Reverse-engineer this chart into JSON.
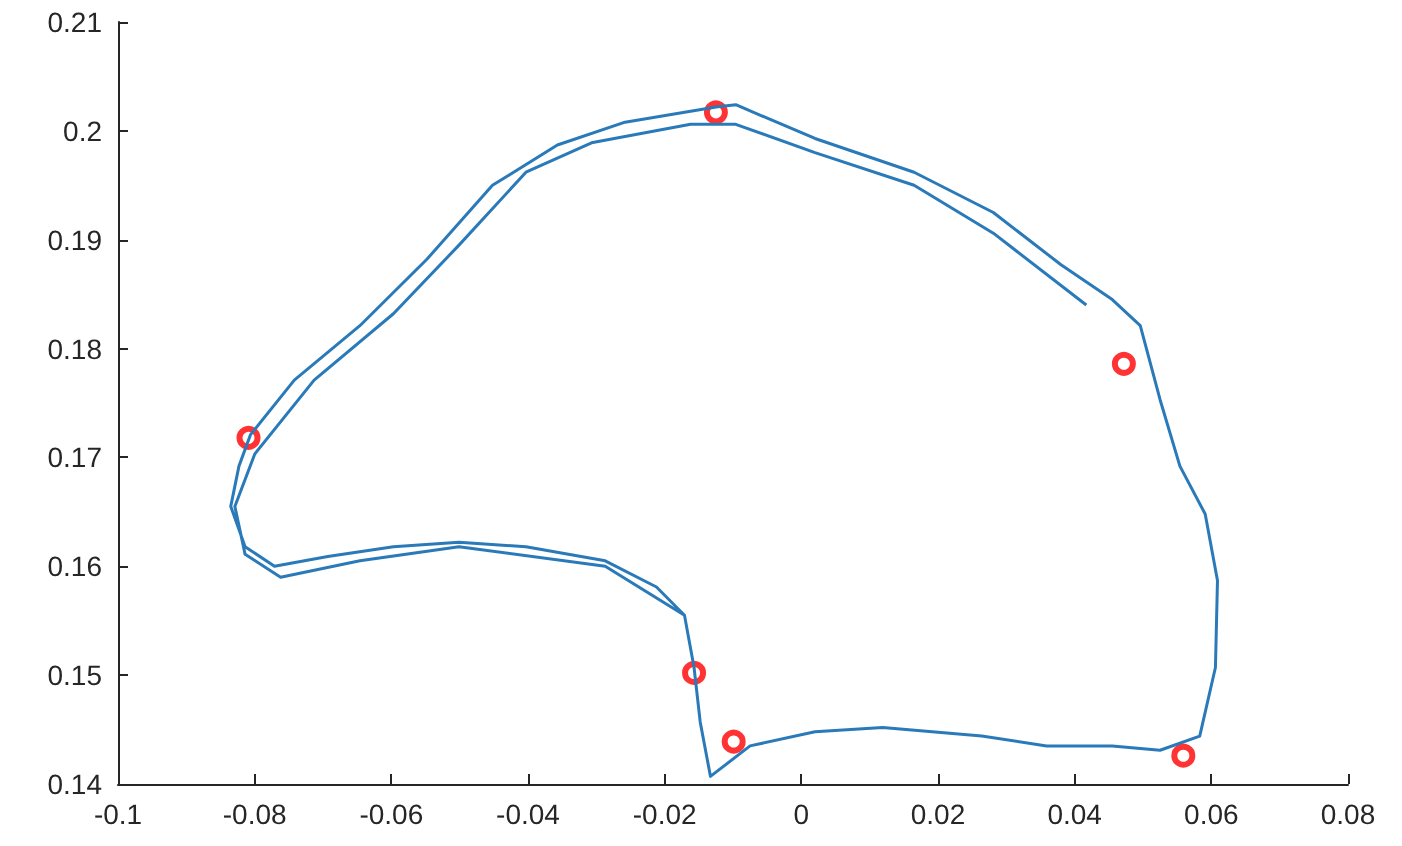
{
  "chart_data": {
    "type": "line",
    "xlim": [
      -0.1,
      0.08
    ],
    "xticks": [
      -0.1,
      -0.08,
      -0.06,
      -0.04,
      -0.02,
      0,
      0.02,
      0.04,
      0.06,
      0.08
    ],
    "ylim": [
      0.14,
      0.21
    ],
    "yticks": [
      0.14,
      0.15,
      0.16,
      0.17,
      0.18,
      0.19,
      0.2,
      0.21
    ],
    "series": [
      {
        "color": "#2a7ab9",
        "marker": "none",
        "line_style": "solid",
        "x": [
          -0.0133,
          -0.0148,
          -0.0157,
          -0.0171,
          -0.0212,
          -0.0287,
          -0.0403,
          -0.0501,
          -0.0597,
          -0.0693,
          -0.0771,
          -0.0814,
          -0.0835,
          -0.0823,
          -0.0806,
          -0.0742,
          -0.0646,
          -0.0548,
          -0.0452,
          -0.0357,
          -0.0258,
          -0.0125,
          -0.0096,
          0.002,
          0.0165,
          0.0281,
          0.038,
          0.0455,
          0.0496,
          0.0525,
          0.0554,
          0.0591,
          0.0609,
          0.0606,
          0.0583,
          0.0525,
          0.0455,
          0.0359,
          0.0264,
          0.0119,
          0.002,
          -0.0075,
          -0.0133,
          -0.0148,
          -0.0157,
          -0.0171,
          -0.0287,
          -0.0501,
          -0.0646,
          -0.0762,
          -0.0814,
          -0.0829,
          -0.08,
          -0.0713,
          -0.0597,
          -0.0501,
          -0.0403,
          -0.0307,
          -0.0162,
          -0.0096,
          0.002,
          0.0165,
          0.0281,
          0.0417
        ],
        "values": [
          0.1407,
          0.1457,
          0.1507,
          0.1555,
          0.1581,
          0.1605,
          0.1618,
          0.1622,
          0.1618,
          0.1609,
          0.16,
          0.1618,
          0.1655,
          0.1692,
          0.1721,
          0.1771,
          0.1821,
          0.1882,
          0.195,
          0.1987,
          0.2008,
          0.2022,
          0.2024,
          0.1993,
          0.1962,
          0.1925,
          0.1877,
          0.1845,
          0.1821,
          0.1753,
          0.1692,
          0.1648,
          0.1587,
          0.1507,
          0.1444,
          0.1431,
          0.1435,
          0.1435,
          0.1444,
          0.1452,
          0.1448,
          0.1435,
          0.1407,
          0.1457,
          0.1507,
          0.1555,
          0.16,
          0.1618,
          0.1605,
          0.159,
          0.1611,
          0.1655,
          0.1703,
          0.1771,
          0.1832,
          0.1895,
          0.1962,
          0.1989,
          0.2006,
          0.2006,
          0.198,
          0.195,
          0.1906,
          0.184
        ]
      },
      {
        "type": "scatter",
        "color": "#ff0000",
        "marker": "circle",
        "x": [
          -0.0125,
          -0.0809,
          -0.0157,
          -0.0099,
          0.0472,
          0.0559
        ],
        "values": [
          0.2017,
          0.1718,
          0.1502,
          0.1439,
          0.1786,
          0.1426
        ]
      }
    ]
  }
}
